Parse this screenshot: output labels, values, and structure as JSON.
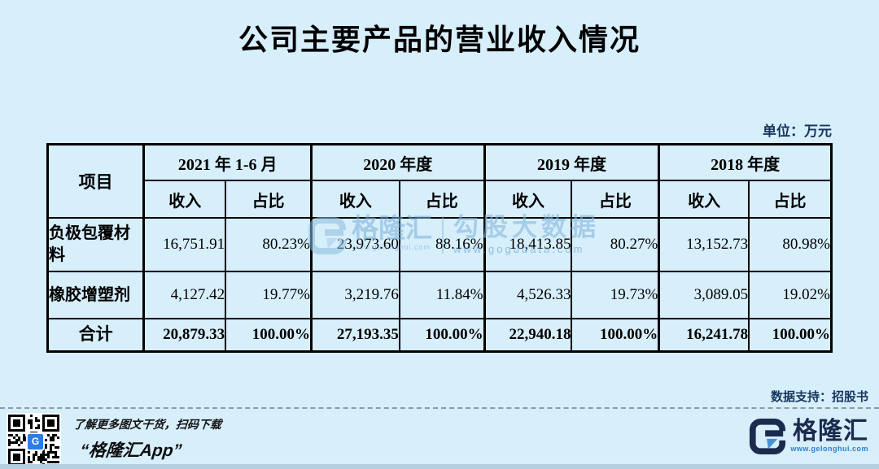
{
  "page": {
    "title": "公司主要产品的营业收入情况",
    "unit_note": "单位：万元",
    "source_note": "数据支持：招股书"
  },
  "table": {
    "item_header": "项目",
    "periods": [
      "2021 年 1-6 月",
      "2020 年度",
      "2019 年度",
      "2018 年度"
    ],
    "income_label": "收入",
    "share_label": "占比",
    "rows": [
      {
        "name": "负极包覆材料",
        "cells": [
          "16,751.91",
          "80.23%",
          "23,973.60",
          "88.16%",
          "18,413.85",
          "80.27%",
          "13,152.73",
          "80.98%"
        ]
      },
      {
        "name": "橡胶增塑剂",
        "cells": [
          "4,127.42",
          "19.77%",
          "3,219.76",
          "11.84%",
          "4,526.33",
          "19.73%",
          "3,089.05",
          "19.02%"
        ]
      }
    ],
    "total": {
      "name": "合计",
      "cells": [
        "20,879.33",
        "100.00%",
        "27,193.35",
        "100.00%",
        "22,940.18",
        "100.00%",
        "16,241.78",
        "100.00%"
      ]
    }
  },
  "watermark": {
    "brand_name": "格隆汇",
    "brand_url": "www.gelonghui.com",
    "partner_name": "勾股大数据",
    "partner_url": "www.gogudata.com"
  },
  "footer": {
    "qr_caption_line1": "了解更多图文干货，扫码下载",
    "qr_caption_line2": "“格隆汇App”",
    "brand_name": "格隆汇",
    "brand_url": "www.gelonghui.com",
    "qr_logo_letter": "G"
  },
  "colors": {
    "background": "#d7eefb",
    "table_border": "#000000",
    "navy_text": "#17365d",
    "brand_navy": "#1b2b4d",
    "brand_blue": "#2f7fd1",
    "watermark_blue": "#8cbede",
    "bottom_strip": "#b5cfe0"
  },
  "chart_data": {
    "type": "table",
    "title": "公司主要产品的营业收入情况",
    "unit": "万元",
    "columns": [
      "项目",
      "2021年1-6月 收入",
      "2021年1-6月 占比",
      "2020年度 收入",
      "2020年度 占比",
      "2019年度 收入",
      "2019年度 占比",
      "2018年度 收入",
      "2018年度 占比"
    ],
    "rows": [
      [
        "负极包覆材料",
        16751.91,
        "80.23%",
        23973.6,
        "88.16%",
        18413.85,
        "80.27%",
        13152.73,
        "80.98%"
      ],
      [
        "橡胶增塑剂",
        4127.42,
        "19.77%",
        3219.76,
        "11.84%",
        4526.33,
        "19.73%",
        3089.05,
        "19.02%"
      ],
      [
        "合计",
        20879.33,
        "100.00%",
        27193.35,
        "100.00%",
        22940.18,
        "100.00%",
        16241.78,
        "100.00%"
      ]
    ],
    "source": "招股书"
  }
}
